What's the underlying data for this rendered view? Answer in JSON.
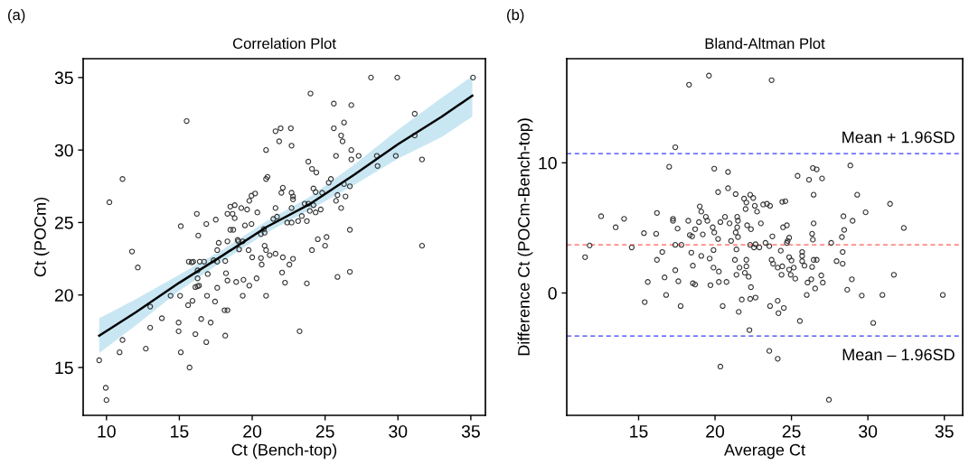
{
  "chart_data": [
    {
      "type": "scatter",
      "title": "Correlation Plot",
      "xlabel": "Ct (Bench-top)",
      "ylabel": "Ct (POCm)",
      "annotations": [
        "(a)"
      ],
      "xlim": [
        8.4,
        36
      ],
      "ylim": [
        11.7,
        36.3
      ],
      "xticks": [
        10,
        15,
        20,
        25,
        30,
        35
      ],
      "yticks": [
        15,
        20,
        25,
        30,
        35
      ],
      "grid": false,
      "legend": false,
      "marker": "circle",
      "series": [
        {
          "type": "line",
          "color": "#000000",
          "marker": "none",
          "line_style": "solid",
          "x": [
            9.5,
            12,
            15,
            18,
            21,
            24,
            27,
            30,
            33,
            35.1
          ],
          "values": [
            17.2,
            18.8,
            20.85,
            22.75,
            24.7,
            26.3,
            28.3,
            30.4,
            32.3,
            33.75
          ],
          "lower": [
            16.0,
            17.9,
            20.3,
            22.35,
            24.3,
            25.9,
            27.6,
            29.4,
            30.9,
            32.3
          ],
          "upper": [
            18.4,
            19.7,
            21.4,
            23.15,
            25.1,
            26.8,
            29.0,
            31.4,
            33.6,
            35.1
          ]
        },
        {
          "color": "#333333",
          "x": [
            10.2,
            11.1,
            15.5,
            15.1,
            16.3,
            16.2,
            16.85,
            17.5,
            17.7,
            18.3,
            18.3,
            18.5,
            18.8,
            18.65,
            18.8,
            18.5,
            18.7,
            19.25,
            19.65,
            19.5,
            19.95,
            19.05,
            19.35,
            19.8,
            19.95,
            20.2,
            20.35,
            20.95,
            20.95,
            21.05,
            21.6,
            21.95,
            21.85,
            22.65,
            22.7,
            22.1,
            22.0,
            22.7,
            22.8,
            22.8,
            21.6,
            21.45,
            21.7,
            20.8,
            20.85,
            22.4,
            22.7,
            22.7,
            23.15,
            23.4,
            23.75,
            23.6,
            23.85,
            23.95,
            24.35,
            24.2,
            24.2,
            24.35,
            24.7,
            23.85,
            24.1,
            24.4,
            24.0,
            24.5,
            25.1,
            24.8,
            25.25,
            25.4,
            25.6,
            25.6,
            25.75,
            25.75,
            25.85,
            26.1,
            26.1,
            26.2,
            26.3,
            26.3,
            26.4,
            26.7,
            26.7,
            26.8,
            26.8,
            26.8,
            27.3,
            28.15,
            28.55,
            28.6,
            29.95,
            29.85,
            31.15,
            31.15,
            31.65,
            35.15,
            9.5,
            9.95,
            10.0,
            10.9,
            11.1,
            11.75,
            12.15,
            12.7,
            13.0,
            13.0,
            13.8,
            14.4,
            14.95,
            14.95,
            15.05,
            15.1,
            15.6,
            15.7,
            15.65,
            15.85,
            15.95,
            15.9,
            16.1,
            16.1,
            16.25,
            16.35,
            16.25,
            16.25,
            16.4,
            16.7,
            16.5,
            16.85,
            16.9,
            16.95,
            17.15,
            17.35,
            17.6,
            17.45,
            17.6,
            17.6,
            18.15,
            18.15,
            18.2,
            18.1,
            18.3,
            18.3,
            18.9,
            19.0,
            19.1,
            19.35,
            19.4,
            19.75,
            19.8,
            20.0,
            20.3,
            20.6,
            20.65,
            20.85,
            20.95,
            20.95,
            21.2,
            21.6,
            22.1,
            22.05,
            22.25,
            22.55,
            22.8,
            23.25,
            23.75,
            24.1,
            25.0,
            25.85,
            26.7,
            31.65,
            20.6
          ],
          "values": [
            26.4,
            28.0,
            32.0,
            24.75,
            24.1,
            25.6,
            24.9,
            25.2,
            23.6,
            25.6,
            23.7,
            26.1,
            26.2,
            25.6,
            25.3,
            24.5,
            24.5,
            26.0,
            25.9,
            24.8,
            24.9,
            23.7,
            23.7,
            26.5,
            26.85,
            27.0,
            25.7,
            30.0,
            28.0,
            28.15,
            31.3,
            31.5,
            30.6,
            31.5,
            30.3,
            27.4,
            27.05,
            27.05,
            26.8,
            26.6,
            26.0,
            25.25,
            25.4,
            24.55,
            24.3,
            25.0,
            25.0,
            26.0,
            25.1,
            25.45,
            25.1,
            26.3,
            26.3,
            25.8,
            25.7,
            26.2,
            27.35,
            27.1,
            25.9,
            29.2,
            28.7,
            28.45,
            33.9,
            23.85,
            24.0,
            27.05,
            27.75,
            28.0,
            31.5,
            33.2,
            29.6,
            26.5,
            26.9,
            26.0,
            31.0,
            30.6,
            31.9,
            27.65,
            26.8,
            27.5,
            24.5,
            33.1,
            30.0,
            29.35,
            29.6,
            35.0,
            29.6,
            28.9,
            35.0,
            29.6,
            32.5,
            31.0,
            29.35,
            35.0,
            15.5,
            13.6,
            12.75,
            16.05,
            16.9,
            23.0,
            21.9,
            16.3,
            17.75,
            19.2,
            18.4,
            19.95,
            18.1,
            17.5,
            19.95,
            16.05,
            19.3,
            15.0,
            22.3,
            22.25,
            22.3,
            19.6,
            17.3,
            20.55,
            20.6,
            20.65,
            21.7,
            21.15,
            22.3,
            22.3,
            18.35,
            16.75,
            19.95,
            21.45,
            18.1,
            22.4,
            22.3,
            19.55,
            23.1,
            20.5,
            17.2,
            22.35,
            21.5,
            18.95,
            18.95,
            21.0,
            20.9,
            23.8,
            23.15,
            19.95,
            21.05,
            23.1,
            20.65,
            22.6,
            21.15,
            22.55,
            22.1,
            23.4,
            23.1,
            19.95,
            22.75,
            22.85,
            22.6,
            21.55,
            20.85,
            22.1,
            22.5,
            17.5,
            20.8,
            23.1,
            23.4,
            21.25,
            21.6,
            23.4,
            24.2
          ]
        }
      ]
    },
    {
      "type": "scatter",
      "title": "Bland-Altman Plot",
      "xlabel": "Average Ct",
      "ylabel": "Difference Ct (POCm-Bench-top)",
      "annotations": [
        "(b)"
      ],
      "xlim": [
        10.3,
        36.2
      ],
      "ylim": [
        -9.4,
        18.0
      ],
      "xticks": [
        15,
        20,
        25,
        30,
        35
      ],
      "yticks": [
        0,
        10
      ],
      "grid": false,
      "legend": false,
      "marker": "circle",
      "ref_lines": [
        {
          "axis": "y",
          "value": 10.7,
          "label": "Mean + 1.96SD",
          "color": "#3b3bff",
          "line_style": "dashed"
        },
        {
          "axis": "y",
          "value": 3.7,
          "color": "#ff5a5a",
          "line_style": "dashed"
        },
        {
          "axis": "y",
          "value": -3.3,
          "label": "Mean – 1.96SD",
          "color": "#3b3bff",
          "line_style": "dashed"
        }
      ],
      "series": [
        {
          "color": "#333333",
          "x": [
            18.3,
            19.6,
            23.7,
            17.4,
            17.0,
            19.95,
            20.85,
            20.2,
            20.85,
            21.35,
            21.9,
            22.5,
            22.05,
            22.3,
            22.6,
            22.75,
            22.0,
            23.15,
            23.4,
            23.6,
            24.4,
            24.6,
            25.4,
            26.15,
            26.4,
            26.65,
            27.0,
            26.45,
            28.85,
            29.3,
            29.85,
            31.45,
            32.35,
            19.0,
            19.1,
            19.4,
            19.5,
            16.2,
            17.25,
            17.25,
            18.25,
            12.55,
            14.05,
            13.5,
            15.35,
            16.15,
            17.55,
            18.7,
            18.95,
            19.2,
            18.35,
            18.5,
            19.85,
            19.95,
            20.2,
            20.35,
            20.65,
            20.95,
            21.45,
            21.5,
            21.45,
            21.35,
            21.5,
            21.05,
            22.1,
            22.35,
            23.0,
            23.75,
            24.45,
            24.7,
            24.85,
            24.75,
            26.35,
            26.4,
            26.45,
            28.4,
            29.0,
            28.45,
            28.3,
            27.6,
            22.3,
            22.65,
            23.3,
            24.7,
            11.5,
            11.8,
            14.55,
            15.6,
            15.4,
            16.2,
            16.55,
            16.7,
            16.8,
            17.4,
            17.4,
            17.8,
            17.6,
            17.75,
            18.45,
            18.55,
            18.55,
            18.7,
            19.1,
            19.65,
            19.9,
            19.9,
            19.7,
            20.25,
            20.25,
            20.75,
            20.5,
            20.35,
            21.3,
            21.4,
            21.4,
            21.6,
            21.55,
            21.75,
            21.95,
            22.2,
            22.05,
            22.05,
            22.35,
            22.3,
            22.65,
            22.25,
            22.55,
            22.9,
            23.55,
            23.7,
            23.8,
            24.1,
            24.3,
            24.4,
            24.35,
            23.6,
            24.1,
            24.5,
            24.15,
            23.55,
            24.1,
            24.85,
            24.85,
            25.0,
            24.95,
            25.15,
            25.25,
            25.7,
            25.7,
            25.7,
            25.85,
            26.05,
            26.0,
            25.55,
            26.3,
            26.35,
            26.45,
            26.65,
            26.55,
            26.95,
            27.05,
            27.95,
            28.35,
            28.35,
            28.65,
            28.95,
            29.6,
            30.35,
            30.95,
            31.7,
            34.9,
            27.45
          ],
          "values": [
            16.0,
            16.7,
            16.35,
            11.2,
            9.7,
            9.55,
            9.3,
            7.75,
            8.05,
            7.6,
            7.25,
            7.3,
            6.95,
            7.55,
            6.7,
            6.25,
            6.45,
            6.8,
            6.85,
            6.7,
            7.0,
            7.05,
            9.0,
            8.7,
            9.6,
            9.5,
            8.8,
            7.55,
            9.8,
            7.55,
            6.2,
            6.85,
            5.0,
            6.65,
            6.25,
            5.85,
            5.55,
            6.15,
            5.7,
            5.55,
            5.55,
            5.9,
            5.7,
            5.05,
            4.6,
            4.55,
            4.95,
            4.9,
            5.45,
            4.5,
            4.45,
            4.35,
            5.05,
            4.65,
            4.15,
            5.45,
            5.85,
            5.35,
            5.85,
            5.55,
            5.05,
            4.65,
            4.3,
            4.0,
            5.2,
            4.9,
            5.35,
            4.35,
            5.05,
            5.2,
            4.25,
            4.0,
            4.55,
            4.1,
            5.35,
            5.9,
            5.55,
            4.85,
            4.3,
            3.85,
            3.7,
            3.75,
            3.85,
            3.85,
            2.75,
            3.65,
            3.5,
            0.85,
            -0.7,
            2.55,
            3.15,
            1.2,
            -0.15,
            1.75,
            3.7,
            3.7,
            0.9,
            -1.0,
            3.1,
            2.1,
            0.75,
            0.65,
            2.85,
            2.65,
            3.3,
            1.95,
            0.6,
            1.65,
            0.85,
            0.85,
            -1.0,
            -5.65,
            2.55,
            3.35,
            1.4,
            1.95,
            -1.45,
            -0.5,
            1.55,
            1.25,
            2.55,
            2.05,
            0.45,
            -0.45,
            -0.35,
            -2.85,
            3.5,
            3.5,
            3.6,
            2.55,
            2.25,
            1.95,
            3.25,
            2.05,
            1.4,
            -1.0,
            -0.6,
            -1.15,
            -1.55,
            -4.45,
            -5.05,
            1.8,
            2.75,
            2.5,
            1.4,
            1.95,
            1.1,
            3.15,
            2.85,
            2.45,
            2.1,
            0.8,
            -0.15,
            -2.15,
            1.05,
            2.0,
            2.55,
            2.55,
            0.35,
            1.35,
            0.8,
            2.45,
            3.15,
            2.25,
            0.25,
            1.05,
            -0.2,
            -2.3,
            -0.15,
            1.4,
            -0.15,
            -8.2
          ]
        }
      ]
    }
  ]
}
